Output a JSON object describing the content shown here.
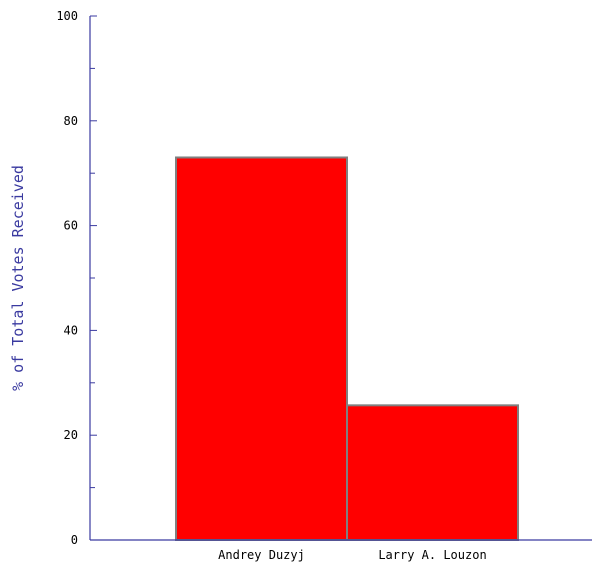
{
  "chart_data": {
    "type": "bar",
    "categories": [
      "Andrey Duzyj",
      "Larry A. Louzon"
    ],
    "values": [
      73,
      25.7
    ],
    "ylabel": "% of Total Votes Received",
    "xlabel": "",
    "ylim": [
      0,
      100
    ],
    "yticks": [
      "0",
      "20",
      "40",
      "60",
      "80",
      "100"
    ],
    "grid": false
  },
  "colors": {
    "bar_fill": "#ff0000",
    "bar_stroke": "#808080",
    "axis": "#3a3aa0",
    "text": "#000000"
  }
}
